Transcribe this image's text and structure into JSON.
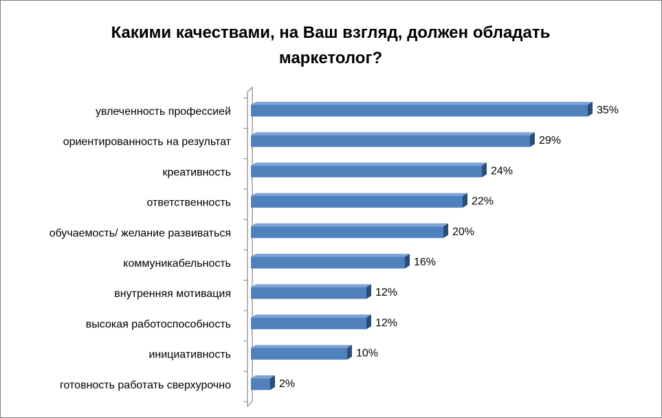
{
  "chart_data": {
    "type": "bar",
    "orientation": "horizontal",
    "title": "Какими  качествами, на Ваш взгляд, должен обладать маркетолог?",
    "categories": [
      "увлеченность профессией",
      "ориентированность на результат",
      "креативность",
      "ответственность",
      "обучаемость/ желание развиваться",
      "коммуникабельность",
      "внутренняя мотивация",
      "высокая работоспособность",
      "инициативность",
      "готовность работать сверхурочно"
    ],
    "values": [
      35,
      29,
      24,
      22,
      20,
      16,
      12,
      12,
      10,
      2
    ],
    "value_labels": [
      "35%",
      "29%",
      "24%",
      "22%",
      "20%",
      "16%",
      "12%",
      "12%",
      "10%",
      "2%"
    ],
    "value_unit": "%",
    "xlim": [
      0,
      35
    ],
    "grid": false,
    "legend": "none",
    "bar_style": "3d",
    "colors": {
      "bar_front": "#4f81bd",
      "bar_top": "#7ea3d6",
      "bar_side": "#2c4d75",
      "axis": "#868686"
    }
  }
}
